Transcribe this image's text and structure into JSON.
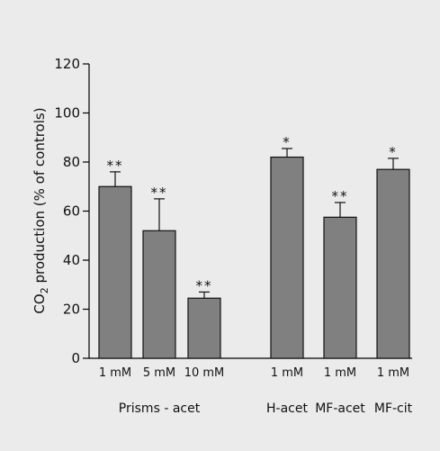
{
  "chart_data": {
    "type": "bar",
    "ylabel": {
      "pre": "CO",
      "sub": "2",
      "post": " production (% of controls)"
    },
    "ylim": [
      0,
      120
    ],
    "yticks": [
      "0",
      "20",
      "40",
      "60",
      "80",
      "100",
      "120"
    ],
    "bars": [
      {
        "label": "1 mM",
        "value": 70,
        "error": 6,
        "sig": "**",
        "group": 0
      },
      {
        "label": "5 mM",
        "value": 52,
        "error": 13,
        "sig": "**",
        "group": 0
      },
      {
        "label": "10 mM",
        "value": 24.5,
        "error": 2.5,
        "sig": "**",
        "group": 0
      },
      {
        "label": "1 mM",
        "value": 82,
        "error": 3.5,
        "sig": "*",
        "group": 1
      },
      {
        "label": "1 mM",
        "value": 57.5,
        "error": 6,
        "sig": "**",
        "group": 2
      },
      {
        "label": "1 mM",
        "value": 77,
        "error": 4.5,
        "sig": "*",
        "group": 3
      }
    ],
    "groups": [
      "Prisms - acet",
      "H-acet",
      "MF-acet",
      "MF-cit"
    ],
    "grid": false,
    "legend": "none"
  }
}
